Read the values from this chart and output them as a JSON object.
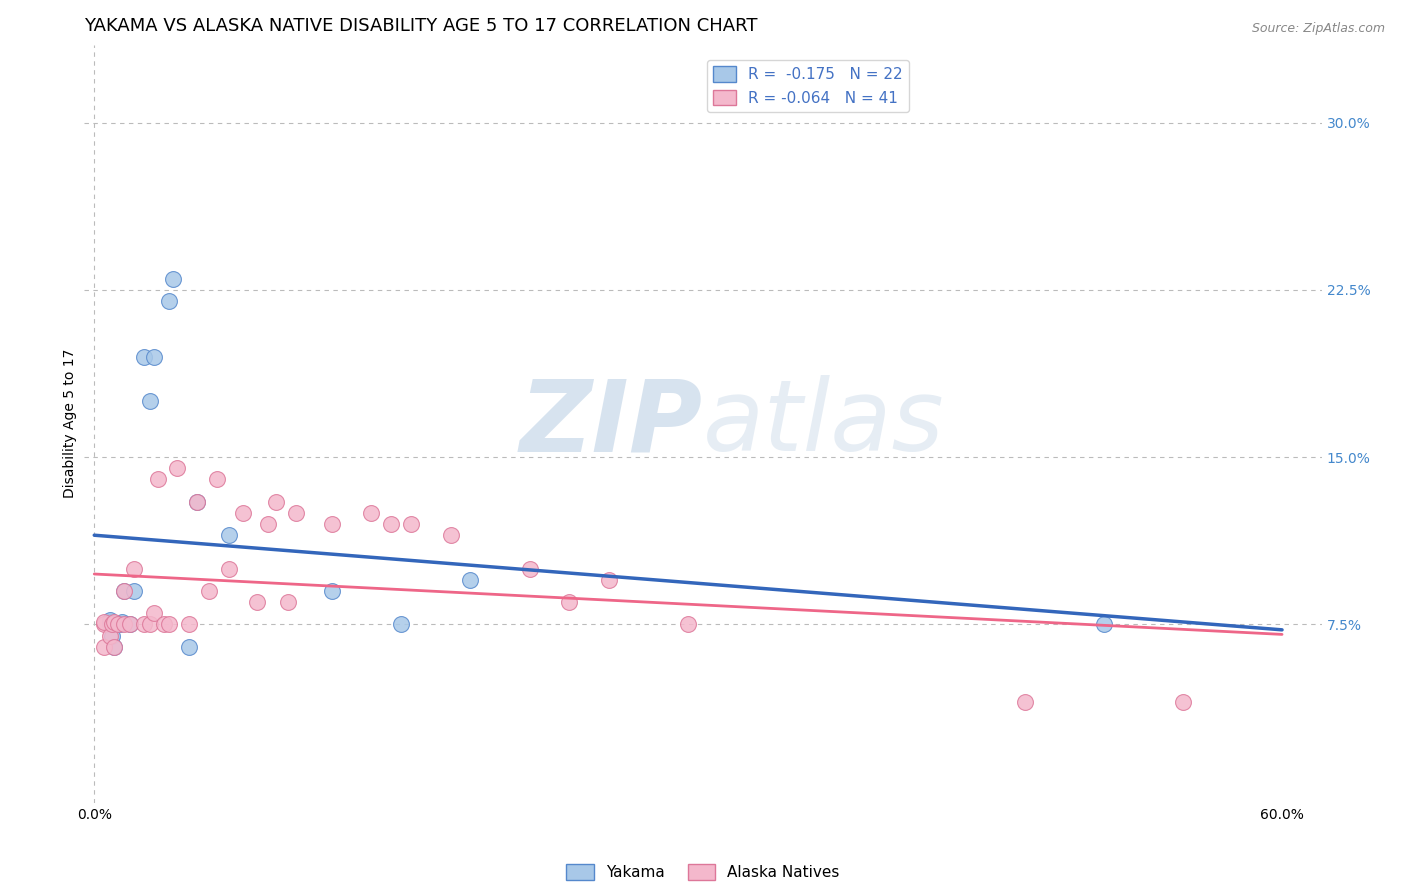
{
  "title": "YAKAMA VS ALASKA NATIVE DISABILITY AGE 5 TO 17 CORRELATION CHART",
  "source": "Source: ZipAtlas.com",
  "ylabel": "Disability Age 5 to 17",
  "xlim": [
    -0.005,
    0.62
  ],
  "ylim": [
    -0.005,
    0.335
  ],
  "xtick_positions": [
    0.0,
    0.6
  ],
  "xticklabels": [
    "0.0%",
    "60.0%"
  ],
  "yticks_right": [
    0.075,
    0.15,
    0.225,
    0.3
  ],
  "ytick_labels_right": [
    "7.5%",
    "15.0%",
    "22.5%",
    "30.0%"
  ],
  "legend_label1": "Yakama",
  "legend_label2": "Alaska Natives",
  "blue_color": "#a8c8e8",
  "blue_edge_color": "#5588cc",
  "pink_color": "#f4b8cc",
  "pink_edge_color": "#dd7799",
  "regression_blue_color": "#3366bb",
  "regression_pink_color": "#ee6688",
  "watermark_color": "#c8d8e8",
  "yakama_x": [
    0.008,
    0.008,
    0.008,
    0.009,
    0.01,
    0.013,
    0.014,
    0.015,
    0.018,
    0.02,
    0.025,
    0.028,
    0.03,
    0.038,
    0.04,
    0.048,
    0.052,
    0.068,
    0.12,
    0.155,
    0.19,
    0.51
  ],
  "yakama_y": [
    0.075,
    0.076,
    0.077,
    0.07,
    0.065,
    0.075,
    0.076,
    0.09,
    0.075,
    0.09,
    0.195,
    0.175,
    0.195,
    0.22,
    0.23,
    0.065,
    0.13,
    0.115,
    0.09,
    0.075,
    0.095,
    0.075
  ],
  "alaska_x": [
    0.005,
    0.005,
    0.005,
    0.008,
    0.009,
    0.01,
    0.01,
    0.012,
    0.015,
    0.015,
    0.018,
    0.02,
    0.025,
    0.028,
    0.03,
    0.032,
    0.035,
    0.038,
    0.042,
    0.048,
    0.052,
    0.058,
    0.062,
    0.068,
    0.075,
    0.082,
    0.088,
    0.092,
    0.098,
    0.102,
    0.12,
    0.14,
    0.15,
    0.16,
    0.18,
    0.22,
    0.24,
    0.26,
    0.3,
    0.47,
    0.55
  ],
  "alaska_y": [
    0.075,
    0.076,
    0.065,
    0.07,
    0.075,
    0.076,
    0.065,
    0.075,
    0.075,
    0.09,
    0.075,
    0.1,
    0.075,
    0.075,
    0.08,
    0.14,
    0.075,
    0.075,
    0.145,
    0.075,
    0.13,
    0.09,
    0.14,
    0.1,
    0.125,
    0.085,
    0.12,
    0.13,
    0.085,
    0.125,
    0.12,
    0.125,
    0.12,
    0.12,
    0.115,
    0.1,
    0.085,
    0.095,
    0.075,
    0.04,
    0.04
  ],
  "background_color": "#ffffff",
  "grid_color": "#bbbbbb",
  "title_fontsize": 13,
  "axis_label_fontsize": 10,
  "tick_fontsize": 10,
  "legend_r1_text": "R =  -0.175   N = 22",
  "legend_r2_text": "R = -0.064   N = 41"
}
